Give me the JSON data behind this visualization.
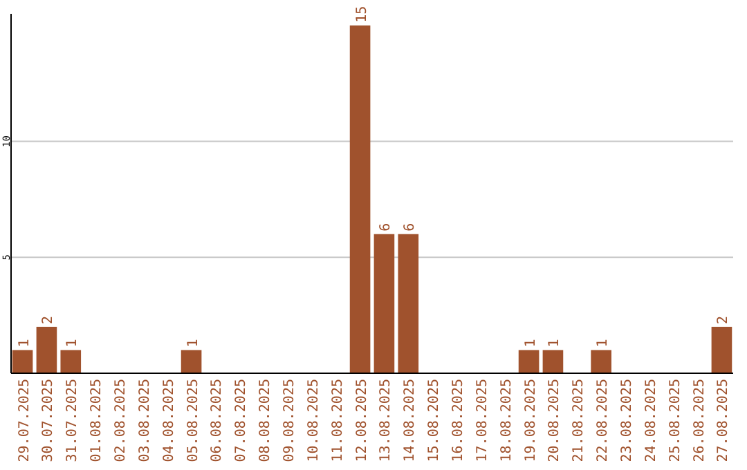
{
  "chart_data": {
    "type": "bar",
    "categories": [
      "29.07.2025",
      "30.07.2025",
      "31.07.2025",
      "01.08.2025",
      "02.08.2025",
      "03.08.2025",
      "04.08.2025",
      "05.08.2025",
      "06.08.2025",
      "07.08.2025",
      "08.08.2025",
      "09.08.2025",
      "10.08.2025",
      "11.08.2025",
      "12.08.2025",
      "13.08.2025",
      "14.08.2025",
      "15.08.2025",
      "16.08.2025",
      "17.08.2025",
      "18.08.2025",
      "19.08.2025",
      "20.08.2025",
      "21.08.2025",
      "22.08.2025",
      "23.08.2025",
      "24.08.2025",
      "25.08.2025",
      "26.08.2025",
      "27.08.2025"
    ],
    "values": [
      1,
      2,
      1,
      0,
      0,
      0,
      0,
      1,
      0,
      0,
      0,
      0,
      0,
      0,
      15,
      6,
      6,
      0,
      0,
      0,
      0,
      1,
      1,
      0,
      1,
      0,
      0,
      0,
      0,
      2
    ],
    "value_labels": [
      "1",
      "2",
      "1",
      null,
      null,
      null,
      null,
      "1",
      null,
      null,
      null,
      null,
      null,
      null,
      "15",
      "6",
      "6",
      null,
      null,
      null,
      null,
      "1",
      "1",
      null,
      "1",
      null,
      null,
      null,
      null,
      "2"
    ],
    "color": "#a0522d",
    "ylim": [
      0,
      15.5
    ],
    "yticks": [
      5,
      10
    ],
    "grid": "y"
  }
}
